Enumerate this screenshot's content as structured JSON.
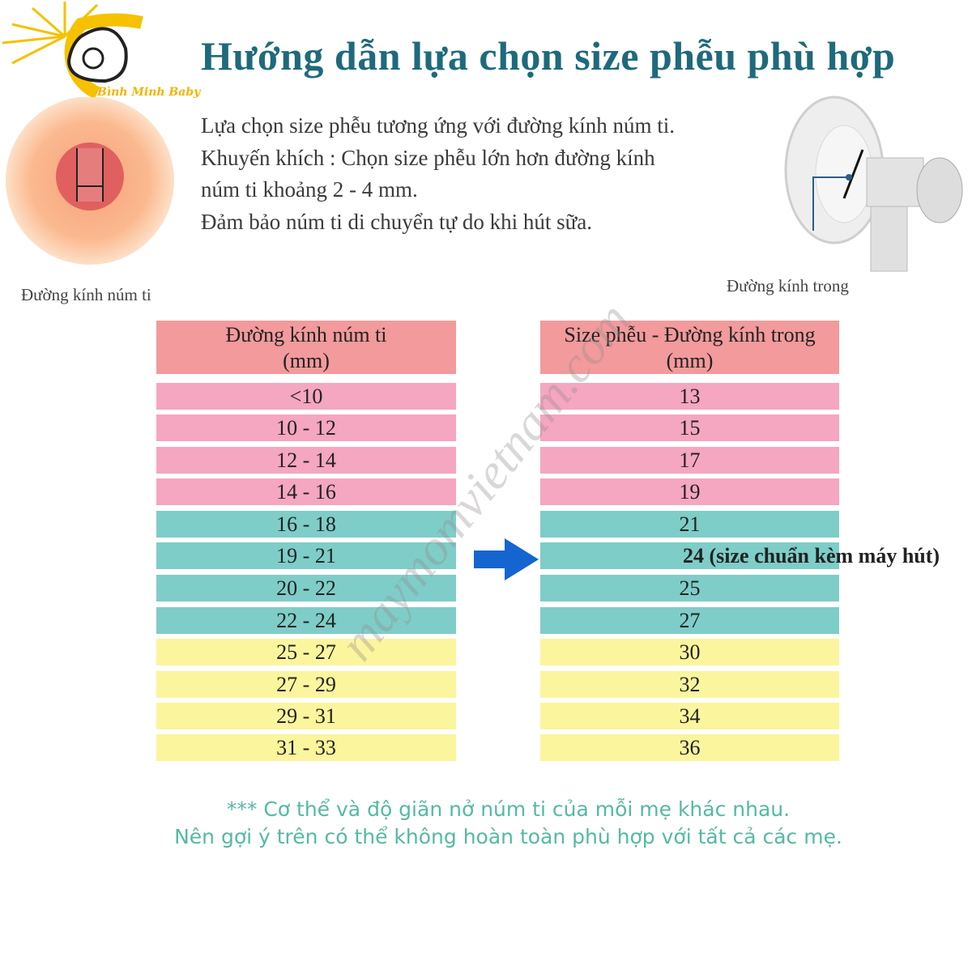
{
  "logo": {
    "text": "Bình Minh Baby"
  },
  "title": "Hướng dẫn lựa chọn size phễu phù hợp",
  "intro_lines": [
    "Lựa chọn size phễu tương ứng với đường kính núm ti.",
    "Khuyến khích : Chọn size phễu lớn hơn đường kính",
    "núm ti khoảng 2 - 4 mm.",
    "Đảm bảo núm ti di chuyển tự do khi hút sữa."
  ],
  "captions": {
    "nipple": "Đường kính núm ti",
    "flange": "Đường kính trong"
  },
  "table": {
    "left_header": [
      "Đường kính núm ti",
      "(mm)"
    ],
    "right_header": [
      "Size phễu - Đường kính trong",
      "(mm)"
    ],
    "rows": [
      {
        "nipple": "<10",
        "flange": "13",
        "group": "pink"
      },
      {
        "nipple": "10 - 12",
        "flange": "15",
        "group": "pink"
      },
      {
        "nipple": "12 - 14",
        "flange": "17",
        "group": "pink"
      },
      {
        "nipple": "14 - 16",
        "flange": "19",
        "group": "pink"
      },
      {
        "nipple": "16 - 18",
        "flange": "21",
        "group": "teal"
      },
      {
        "nipple": "19 - 21",
        "flange": "24 (size chuẩn kèm máy hút)",
        "group": "teal",
        "highlight": true
      },
      {
        "nipple": "20 - 22",
        "flange": "25",
        "group": "teal"
      },
      {
        "nipple": "22 - 24",
        "flange": "27",
        "group": "teal"
      },
      {
        "nipple": "25 - 27",
        "flange": "30",
        "group": "yellow"
      },
      {
        "nipple": "27 - 29",
        "flange": "32",
        "group": "yellow"
      },
      {
        "nipple": "29 - 31",
        "flange": "34",
        "group": "yellow"
      },
      {
        "nipple": "31 - 33",
        "flange": "36",
        "group": "yellow"
      }
    ]
  },
  "colors": {
    "header": "#f29a9c",
    "pink": "#f5a6c1",
    "teal": "#7ecdc8",
    "yellow": "#fbf59d",
    "arrow": "#1565d0",
    "title": "#1e6a7c",
    "footer": "#55b9a4"
  },
  "footer_lines": [
    "*** Cơ thể và độ giãn nở núm ti của mỗi mẹ khác nhau.",
    "Nên gợi ý trên có thể không hoàn toàn phù hợp với tất cả các mẹ."
  ],
  "watermark": "maymomvietnam.com"
}
